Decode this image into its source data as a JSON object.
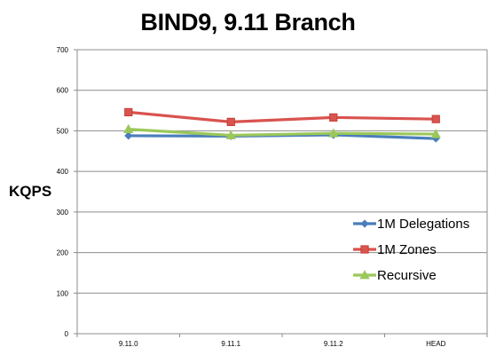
{
  "chart_data": {
    "type": "line",
    "title": "BIND9, 9.11 Branch",
    "ylabel": "KQPS",
    "xlabel": "",
    "categories": [
      "9.11.0",
      "9.11.1",
      "9.11.2",
      "HEAD"
    ],
    "ylim": [
      0,
      700
    ],
    "yticks": [
      0,
      100,
      200,
      300,
      400,
      500,
      600,
      700
    ],
    "grid": true,
    "legend_position": "right",
    "series": [
      {
        "name": "1M Delegations",
        "values": [
          488,
          487,
          490,
          481
        ],
        "color": "#4a7ebb",
        "marker": "diamond"
      },
      {
        "name": "1M Zones",
        "values": [
          546,
          522,
          533,
          529
        ],
        "color": "#d9534f",
        "marker": "square"
      },
      {
        "name": "Recursive",
        "values": [
          504,
          489,
          494,
          492
        ],
        "color": "#9bc85a",
        "marker": "triangle"
      }
    ]
  }
}
